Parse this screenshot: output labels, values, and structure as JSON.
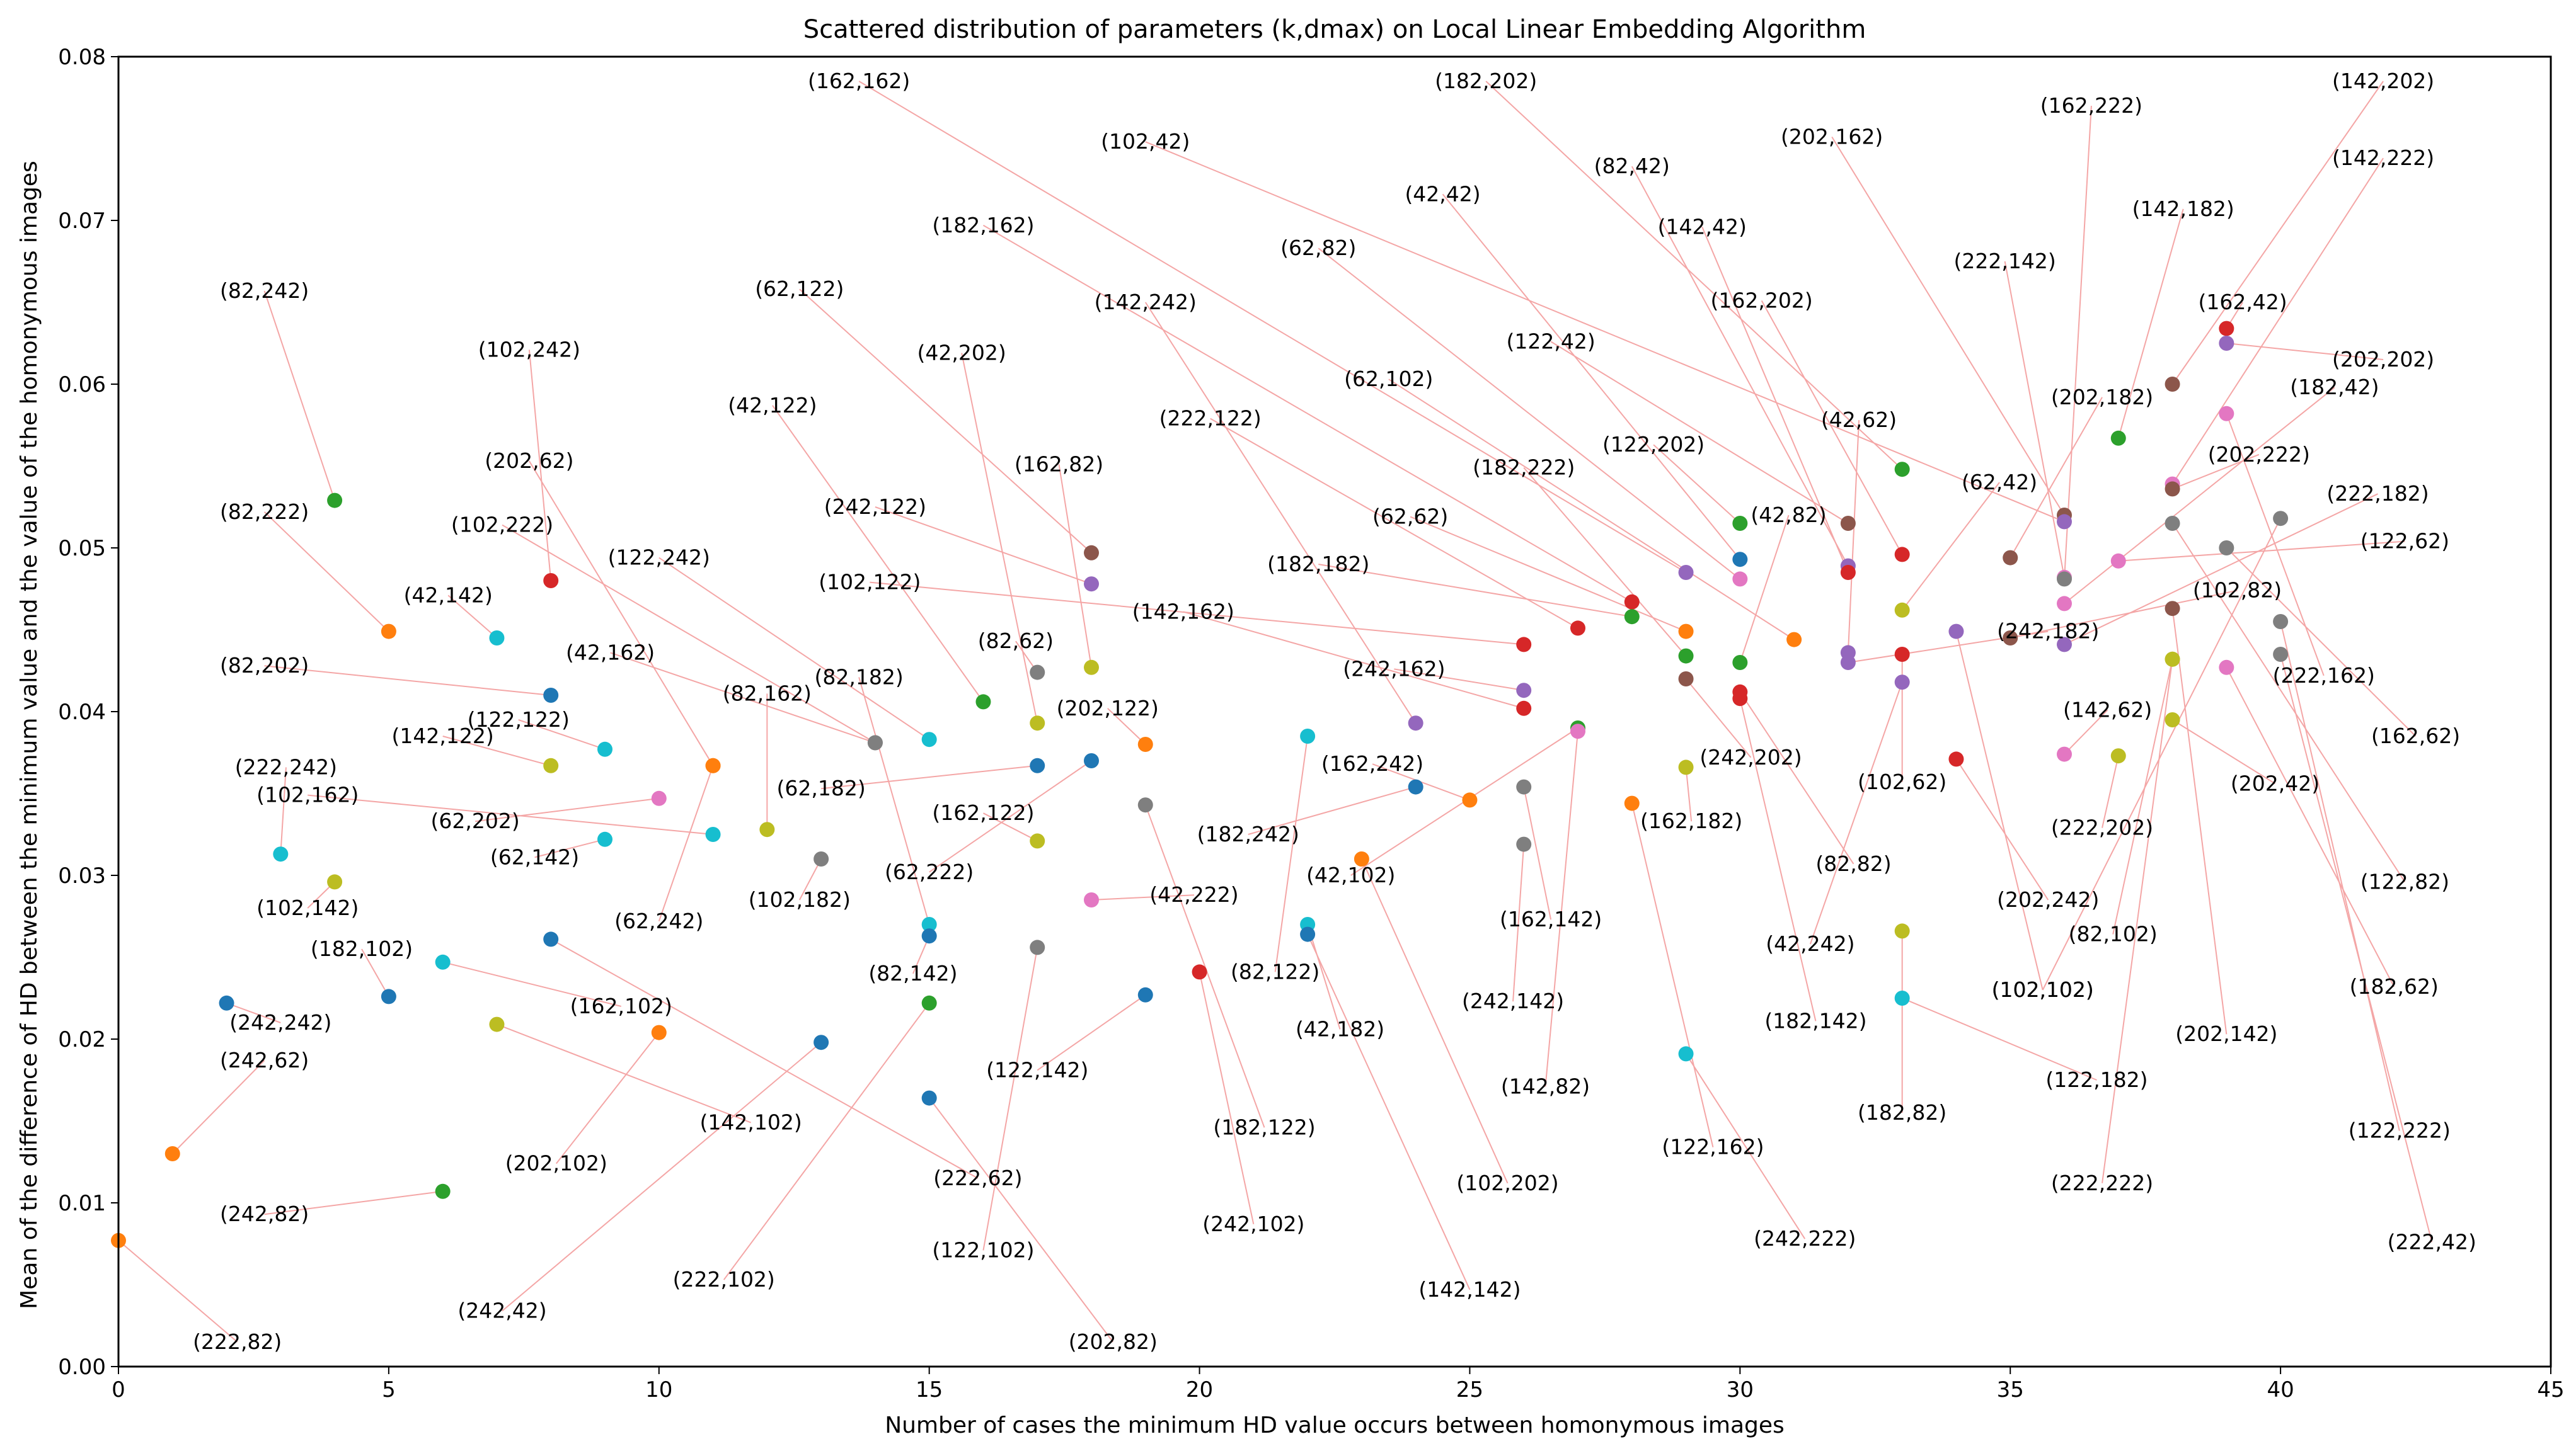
{
  "chart_data": {
    "type": "scatter",
    "title": "Scattered distribution of parameters (k,dmax) on Local Linear Embedding Algorithm",
    "xlabel": "Number of cases the minimum HD value occurs between homonymous images",
    "ylabel": "Mean of the difference of HD between the minimum value and the value of the homonymous images",
    "xlim": [
      0,
      45
    ],
    "ylim": [
      0,
      0.08
    ],
    "xticks": [
      0,
      5,
      10,
      15,
      20,
      25,
      30,
      35,
      40,
      45
    ],
    "xtick_labels": [
      "0",
      "5",
      "10",
      "15",
      "20",
      "25",
      "30",
      "35",
      "40",
      "45"
    ],
    "yticks": [
      0,
      0.01,
      0.02,
      0.03,
      0.04,
      0.05,
      0.06,
      0.07,
      0.08
    ],
    "ytick_labels": [
      "0.00",
      "0.01",
      "0.02",
      "0.03",
      "0.04",
      "0.05",
      "0.06",
      "0.07",
      "0.08"
    ],
    "grid": false,
    "leader_line_color": "#f4a6a6",
    "points": [
      {
        "x": 0,
        "y": 0.0077,
        "label": "(222,82)",
        "lx": 2.2,
        "ly": 0.0015,
        "color": "#ff7f0e"
      },
      {
        "x": 1,
        "y": 0.013,
        "label": "(242,62)",
        "lx": 2.7,
        "ly": 0.0187,
        "color": "#ff7f0e"
      },
      {
        "x": 2,
        "y": 0.0222,
        "label": "(242,242)",
        "lx": 3.0,
        "ly": 0.021,
        "color": "#1f77b4"
      },
      {
        "x": 3,
        "y": 0.0313,
        "label": "(222,242)",
        "lx": 3.1,
        "ly": 0.0366,
        "color": "#17becf"
      },
      {
        "x": 4,
        "y": 0.0529,
        "label": "(82,242)",
        "lx": 2.7,
        "ly": 0.0657,
        "color": "#2ca02c"
      },
      {
        "x": 4,
        "y": 0.0296,
        "label": "(102,142)",
        "lx": 3.5,
        "ly": 0.028,
        "color": "#bcbd22"
      },
      {
        "x": 5,
        "y": 0.0449,
        "label": "(82,222)",
        "lx": 2.7,
        "ly": 0.0522,
        "color": "#ff7f0e"
      },
      {
        "x": 5,
        "y": 0.0226,
        "label": "(182,102)",
        "lx": 4.5,
        "ly": 0.0255,
        "color": "#1f77b4"
      },
      {
        "x": 6,
        "y": 0.0107,
        "label": "(242,82)",
        "lx": 2.7,
        "ly": 0.0093,
        "color": "#2ca02c"
      },
      {
        "x": 6,
        "y": 0.0247,
        "label": "(162,102)",
        "lx": 9.3,
        "ly": 0.022,
        "color": "#17becf"
      },
      {
        "x": 7,
        "y": 0.0445,
        "label": "(42,142)",
        "lx": 6.1,
        "ly": 0.0471,
        "color": "#17becf"
      },
      {
        "x": 7,
        "y": 0.0209,
        "label": "(142,102)",
        "lx": 11.7,
        "ly": 0.0149,
        "color": "#bcbd22"
      },
      {
        "x": 8,
        "y": 0.048,
        "label": "(102,242)",
        "lx": 7.6,
        "ly": 0.0621,
        "color": "#d62728"
      },
      {
        "x": 8,
        "y": 0.041,
        "label": "(82,202)",
        "lx": 2.7,
        "ly": 0.0428,
        "color": "#1f77b4"
      },
      {
        "x": 8,
        "y": 0.0367,
        "label": "(142,122)",
        "lx": 6.0,
        "ly": 0.0385,
        "color": "#bcbd22"
      },
      {
        "x": 8,
        "y": 0.0261,
        "label": "(222,62)",
        "lx": 15.9,
        "ly": 0.0115,
        "color": "#1f77b4"
      },
      {
        "x": 9,
        "y": 0.0377,
        "label": "(122,122)",
        "lx": 7.4,
        "ly": 0.0395,
        "color": "#17becf"
      },
      {
        "x": 9,
        "y": 0.0322,
        "label": "(62,142)",
        "lx": 7.7,
        "ly": 0.0311,
        "color": "#17becf"
      },
      {
        "x": 10,
        "y": 0.0347,
        "label": "(62,202)",
        "lx": 6.6,
        "ly": 0.0333,
        "color": "#e377c2"
      },
      {
        "x": 10,
        "y": 0.0204,
        "label": "(202,102)",
        "lx": 8.1,
        "ly": 0.0124,
        "color": "#ff7f0e"
      },
      {
        "x": 11,
        "y": 0.0367,
        "label": "(202,62)",
        "lx": 7.6,
        "ly": 0.0553,
        "color": "#ff7f0e"
      },
      {
        "x": 11,
        "y": 0.0325,
        "label": "(102,162)",
        "lx": 3.5,
        "ly": 0.0349,
        "color": "#17becf"
      },
      {
        "x": 11,
        "y": 0.0367,
        "label": "(62,242)",
        "lx": 10.0,
        "ly": 0.0272,
        "color": "#ff7f0e"
      },
      {
        "x": 12,
        "y": 0.0328,
        "label": "(82,162)",
        "lx": 12.0,
        "ly": 0.0411,
        "color": "#bcbd22"
      },
      {
        "x": 13,
        "y": 0.031,
        "label": "(102,182)",
        "lx": 12.6,
        "ly": 0.0285,
        "color": "#7f7f7f"
      },
      {
        "x": 13,
        "y": 0.0198,
        "label": "(242,42)",
        "lx": 7.1,
        "ly": 0.0034,
        "color": "#1f77b4"
      },
      {
        "x": 14,
        "y": 0.0381,
        "label": "(42,162)",
        "lx": 9.1,
        "ly": 0.0436,
        "color": "#7f7f7f"
      },
      {
        "x": 14,
        "y": 0.0381,
        "label": "(102,222)",
        "lx": 7.1,
        "ly": 0.0514,
        "color": "#7f7f7f"
      },
      {
        "x": 15,
        "y": 0.0383,
        "label": "(122,242)",
        "lx": 10.0,
        "ly": 0.0494,
        "color": "#17becf"
      },
      {
        "x": 15,
        "y": 0.027,
        "label": "(82,182)",
        "lx": 13.7,
        "ly": 0.0421,
        "color": "#17becf"
      },
      {
        "x": 15,
        "y": 0.0263,
        "label": "(82,142)",
        "lx": 14.7,
        "ly": 0.024,
        "color": "#1f77b4"
      },
      {
        "x": 15,
        "y": 0.0222,
        "label": "(222,102)",
        "lx": 11.2,
        "ly": 0.0053,
        "color": "#2ca02c"
      },
      {
        "x": 15,
        "y": 0.0164,
        "label": "(202,82)",
        "lx": 18.4,
        "ly": 0.0015,
        "color": "#1f77b4"
      },
      {
        "x": 16,
        "y": 0.0406,
        "label": "(42,122)",
        "lx": 12.1,
        "ly": 0.0587,
        "color": "#2ca02c"
      },
      {
        "x": 17,
        "y": 0.0424,
        "label": "(82,62)",
        "lx": 16.6,
        "ly": 0.0443,
        "color": "#7f7f7f"
      },
      {
        "x": 17,
        "y": 0.0393,
        "label": "(42,202)",
        "lx": 15.6,
        "ly": 0.0619,
        "color": "#bcbd22"
      },
      {
        "x": 17,
        "y": 0.0367,
        "label": "(62,182)",
        "lx": 13.0,
        "ly": 0.0353,
        "color": "#1f77b4"
      },
      {
        "x": 17,
        "y": 0.0321,
        "label": "(162,122)",
        "lx": 16.0,
        "ly": 0.0338,
        "color": "#bcbd22"
      },
      {
        "x": 17,
        "y": 0.0256,
        "label": "(122,102)",
        "lx": 16.0,
        "ly": 0.0071,
        "color": "#7f7f7f"
      },
      {
        "x": 18,
        "y": 0.0497,
        "label": "(62,122)",
        "lx": 12.6,
        "ly": 0.0658,
        "color": "#8c564b"
      },
      {
        "x": 18,
        "y": 0.0478,
        "label": "(242,122)",
        "lx": 14.0,
        "ly": 0.0525,
        "color": "#9467bd"
      },
      {
        "x": 18,
        "y": 0.0427,
        "label": "(162,82)",
        "lx": 17.4,
        "ly": 0.0551,
        "color": "#bcbd22"
      },
      {
        "x": 18,
        "y": 0.037,
        "label": "(62,222)",
        "lx": 15.0,
        "ly": 0.0302,
        "color": "#1f77b4"
      },
      {
        "x": 18,
        "y": 0.0285,
        "label": "(42,222)",
        "lx": 19.9,
        "ly": 0.0288,
        "color": "#e377c2"
      },
      {
        "x": 19,
        "y": 0.038,
        "label": "(202,122)",
        "lx": 18.3,
        "ly": 0.0402,
        "color": "#ff7f0e"
      },
      {
        "x": 19,
        "y": 0.0343,
        "label": "(182,122)",
        "lx": 21.2,
        "ly": 0.0146,
        "color": "#7f7f7f"
      },
      {
        "x": 19,
        "y": 0.0227,
        "label": "(122,142)",
        "lx": 17.0,
        "ly": 0.0181,
        "color": "#1f77b4"
      },
      {
        "x": 20,
        "y": 0.0241,
        "label": "(242,102)",
        "lx": 21.0,
        "ly": 0.0087,
        "color": "#d62728"
      },
      {
        "x": 22,
        "y": 0.0385,
        "label": "(82,122)",
        "lx": 21.4,
        "ly": 0.0241,
        "color": "#17becf"
      },
      {
        "x": 22,
        "y": 0.027,
        "label": "(42,182)",
        "lx": 22.6,
        "ly": 0.0206,
        "color": "#17becf"
      },
      {
        "x": 22,
        "y": 0.0264,
        "label": "(142,142)",
        "lx": 25.0,
        "ly": 0.0047,
        "color": "#1f77b4"
      },
      {
        "x": 23,
        "y": 0.031,
        "label": "(102,202)",
        "lx": 25.7,
        "ly": 0.0112,
        "color": "#ff7f0e"
      },
      {
        "x": 24,
        "y": 0.0393,
        "label": "(142,242)",
        "lx": 19.0,
        "ly": 0.065,
        "color": "#9467bd"
      },
      {
        "x": 24,
        "y": 0.0354,
        "label": "(182,242)",
        "lx": 20.9,
        "ly": 0.0325,
        "color": "#1f77b4"
      },
      {
        "x": 25,
        "y": 0.0346,
        "label": "(162,242)",
        "lx": 23.2,
        "ly": 0.0368,
        "color": "#ff7f0e"
      },
      {
        "x": 26,
        "y": 0.0441,
        "label": "(102,122)",
        "lx": 13.9,
        "ly": 0.0479,
        "color": "#d62728"
      },
      {
        "x": 26,
        "y": 0.0413,
        "label": "(242,162)",
        "lx": 23.6,
        "ly": 0.0426,
        "color": "#9467bd"
      },
      {
        "x": 26,
        "y": 0.0402,
        "label": "(142,162)",
        "lx": 19.7,
        "ly": 0.0461,
        "color": "#d62728"
      },
      {
        "x": 26,
        "y": 0.0354,
        "label": "(162,142)",
        "lx": 26.5,
        "ly": 0.0273,
        "color": "#7f7f7f"
      },
      {
        "x": 26,
        "y": 0.0319,
        "label": "(242,142)",
        "lx": 25.8,
        "ly": 0.0223,
        "color": "#7f7f7f"
      },
      {
        "x": 27,
        "y": 0.0451,
        "label": "(222,122)",
        "lx": 20.2,
        "ly": 0.0579,
        "color": "#d62728"
      },
      {
        "x": 27,
        "y": 0.039,
        "label": "(42,102)",
        "lx": 22.8,
        "ly": 0.03,
        "color": "#2ca02c"
      },
      {
        "x": 27,
        "y": 0.0388,
        "label": "(142,82)",
        "lx": 26.4,
        "ly": 0.0171,
        "color": "#e377c2"
      },
      {
        "x": 28,
        "y": 0.0467,
        "label": "(182,162)",
        "lx": 16.0,
        "ly": 0.0697,
        "color": "#d62728"
      },
      {
        "x": 28,
        "y": 0.0458,
        "label": "(182,182)",
        "lx": 22.2,
        "ly": 0.049,
        "color": "#2ca02c"
      },
      {
        "x": 28,
        "y": 0.0344,
        "label": "(122,162)",
        "lx": 29.5,
        "ly": 0.0134,
        "color": "#ff7f0e"
      },
      {
        "x": 29,
        "y": 0.0485,
        "label": "(162,162)",
        "lx": 13.7,
        "ly": 0.0785,
        "color": "#9467bd"
      },
      {
        "x": 29,
        "y": 0.0449,
        "label": "(62,62)",
        "lx": 23.9,
        "ly": 0.0519,
        "color": "#ff7f0e"
      },
      {
        "x": 29,
        "y": 0.0434,
        "label": "(182,222)",
        "lx": 26.0,
        "ly": 0.0549,
        "color": "#2ca02c"
      },
      {
        "x": 29,
        "y": 0.042,
        "label": "(242,202)",
        "lx": 30.2,
        "ly": 0.0372,
        "color": "#8c564b"
      },
      {
        "x": 29,
        "y": 0.0366,
        "label": "(162,182)",
        "lx": 29.1,
        "ly": 0.0333,
        "color": "#bcbd22"
      },
      {
        "x": 29,
        "y": 0.0191,
        "label": "(242,222)",
        "lx": 31.2,
        "ly": 0.0078,
        "color": "#17becf"
      },
      {
        "x": 30,
        "y": 0.0515,
        "label": "(122,202)",
        "lx": 28.4,
        "ly": 0.0563,
        "color": "#2ca02c"
      },
      {
        "x": 30,
        "y": 0.0493,
        "label": "(42,42)",
        "lx": 24.5,
        "ly": 0.0716,
        "color": "#1f77b4"
      },
      {
        "x": 30,
        "y": 0.0481,
        "label": "(62,82)",
        "lx": 22.2,
        "ly": 0.0683,
        "color": "#e377c2"
      },
      {
        "x": 30,
        "y": 0.043,
        "label": "(42,82)",
        "lx": 30.9,
        "ly": 0.052,
        "color": "#2ca02c"
      },
      {
        "x": 30,
        "y": 0.0412,
        "label": "(82,82)",
        "lx": 32.1,
        "ly": 0.0307,
        "color": "#d62728"
      },
      {
        "x": 30,
        "y": 0.0408,
        "label": "(182,142)",
        "lx": 31.4,
        "ly": 0.0211,
        "color": "#d62728"
      },
      {
        "x": 31,
        "y": 0.0444,
        "label": "(62,102)",
        "lx": 23.5,
        "ly": 0.0603,
        "color": "#ff7f0e"
      },
      {
        "x": 32,
        "y": 0.0515,
        "label": "(122,42)",
        "lx": 26.5,
        "ly": 0.0626,
        "color": "#8c564b"
      },
      {
        "x": 32,
        "y": 0.0489,
        "label": "(82,42)",
        "lx": 28.0,
        "ly": 0.0733,
        "color": "#9467bd"
      },
      {
        "x": 32,
        "y": 0.0485,
        "label": "(142,42)",
        "lx": 29.3,
        "ly": 0.0696,
        "color": "#d62728"
      },
      {
        "x": 32,
        "y": 0.0436,
        "label": "(42,62)",
        "lx": 32.2,
        "ly": 0.0578,
        "color": "#9467bd"
      },
      {
        "x": 32,
        "y": 0.043,
        "label": "(242,182)",
        "lx": 35.7,
        "ly": 0.0449,
        "color": "#9467bd"
      },
      {
        "x": 33,
        "y": 0.0548,
        "label": "(182,202)",
        "lx": 25.3,
        "ly": 0.0785,
        "color": "#2ca02c"
      },
      {
        "x": 33,
        "y": 0.0496,
        "label": "(162,202)",
        "lx": 30.4,
        "ly": 0.0651,
        "color": "#d62728"
      },
      {
        "x": 33,
        "y": 0.0462,
        "label": "(62,42)",
        "lx": 34.8,
        "ly": 0.054,
        "color": "#bcbd22"
      },
      {
        "x": 33,
        "y": 0.0435,
        "label": "(102,62)",
        "lx": 33.0,
        "ly": 0.0357,
        "color": "#d62728"
      },
      {
        "x": 33,
        "y": 0.0418,
        "label": "(42,242)",
        "lx": 31.3,
        "ly": 0.0258,
        "color": "#9467bd"
      },
      {
        "x": 33,
        "y": 0.0266,
        "label": "(182,82)",
        "lx": 33.0,
        "ly": 0.0155,
        "color": "#bcbd22"
      },
      {
        "x": 33,
        "y": 0.0225,
        "label": "(122,182)",
        "lx": 36.6,
        "ly": 0.0175,
        "color": "#17becf"
      },
      {
        "x": 34,
        "y": 0.0449,
        "label": "(102,102)",
        "lx": 35.6,
        "ly": 0.023,
        "color": "#9467bd"
      },
      {
        "x": 34,
        "y": 0.0371,
        "label": "(202,242)",
        "lx": 35.7,
        "ly": 0.0285,
        "color": "#d62728"
      },
      {
        "x": 35,
        "y": 0.0494,
        "label": "(202,182)",
        "lx": 36.7,
        "ly": 0.0592,
        "color": "#8c564b"
      },
      {
        "x": 35,
        "y": 0.0445,
        "label": "(102,82)",
        "lx": 39.2,
        "ly": 0.0474,
        "color": "#8c564b"
      },
      {
        "x": 36,
        "y": 0.052,
        "label": "(202,162)",
        "lx": 31.7,
        "ly": 0.0751,
        "color": "#8c564b"
      },
      {
        "x": 36,
        "y": 0.0516,
        "label": "(102,42)",
        "lx": 19.0,
        "ly": 0.0748,
        "color": "#9467bd"
      },
      {
        "x": 36,
        "y": 0.0482,
        "label": "(222,142)",
        "lx": 34.9,
        "ly": 0.0675,
        "color": "#e377c2"
      },
      {
        "x": 36,
        "y": 0.0481,
        "label": "(162,222)",
        "lx": 36.5,
        "ly": 0.077,
        "color": "#7f7f7f"
      },
      {
        "x": 36,
        "y": 0.0466,
        "label": "(182,42)",
        "lx": 41.0,
        "ly": 0.0598,
        "color": "#e377c2"
      },
      {
        "x": 36,
        "y": 0.0441,
        "label": "(222,182)",
        "lx": 41.8,
        "ly": 0.0533,
        "color": "#9467bd"
      },
      {
        "x": 36,
        "y": 0.0374,
        "label": "(142,62)",
        "lx": 36.8,
        "ly": 0.0401,
        "color": "#e377c2"
      },
      {
        "x": 37,
        "y": 0.0567,
        "label": "(142,182)",
        "lx": 38.2,
        "ly": 0.0707,
        "color": "#2ca02c"
      },
      {
        "x": 37,
        "y": 0.0492,
        "label": "(122,62)",
        "lx": 42.3,
        "ly": 0.0504,
        "color": "#e377c2"
      },
      {
        "x": 37,
        "y": 0.0373,
        "label": "(222,202)",
        "lx": 36.7,
        "ly": 0.0329,
        "color": "#bcbd22"
      },
      {
        "x": 38,
        "y": 0.06,
        "label": "(142,202)",
        "lx": 41.9,
        "ly": 0.0785,
        "color": "#8c564b"
      },
      {
        "x": 38,
        "y": 0.0539,
        "label": "(142,222)",
        "lx": 41.9,
        "ly": 0.0738,
        "color": "#e377c2"
      },
      {
        "x": 38,
        "y": 0.0536,
        "label": "(202,222)",
        "lx": 39.6,
        "ly": 0.0557,
        "color": "#8c564b"
      },
      {
        "x": 38,
        "y": 0.0515,
        "label": "(122,82)",
        "lx": 42.3,
        "ly": 0.0296,
        "color": "#7f7f7f"
      },
      {
        "x": 38,
        "y": 0.0463,
        "label": "(202,142)",
        "lx": 39.0,
        "ly": 0.0203,
        "color": "#8c564b"
      },
      {
        "x": 38,
        "y": 0.0432,
        "label": "(82,102)",
        "lx": 36.9,
        "ly": 0.0264,
        "color": "#bcbd22"
      },
      {
        "x": 38,
        "y": 0.0395,
        "label": "(202,42)",
        "lx": 39.9,
        "ly": 0.0356,
        "color": "#bcbd22"
      },
      {
        "x": 39,
        "y": 0.0634,
        "label": "(162,42)",
        "lx": 39.3,
        "ly": 0.065,
        "color": "#d62728"
      },
      {
        "x": 39,
        "y": 0.0625,
        "label": "(202,202)",
        "lx": 41.9,
        "ly": 0.0615,
        "color": "#9467bd"
      },
      {
        "x": 39,
        "y": 0.0582,
        "label": "(222,162)",
        "lx": 40.8,
        "ly": 0.0422,
        "color": "#e377c2"
      },
      {
        "x": 39,
        "y": 0.05,
        "label": "(162,62)",
        "lx": 42.5,
        "ly": 0.0385,
        "color": "#7f7f7f"
      },
      {
        "x": 39,
        "y": 0.0427,
        "label": "(182,62)",
        "lx": 42.1,
        "ly": 0.0232,
        "color": "#e377c2"
      },
      {
        "x": 40,
        "y": 0.0518,
        "label": "(102,102)",
        "lx": 35.6,
        "ly": 0.023,
        "color": "#7f7f7f"
      },
      {
        "x": 40,
        "y": 0.0455,
        "label": "(122,222)",
        "lx": 42.2,
        "ly": 0.0144,
        "color": "#7f7f7f"
      },
      {
        "x": 40,
        "y": 0.0435,
        "label": "(222,42)",
        "lx": 42.8,
        "ly": 0.0076,
        "color": "#7f7f7f"
      },
      {
        "x": 38,
        "y": 0.0432,
        "label": "(222,222)",
        "lx": 36.7,
        "ly": 0.0112,
        "color": "#bcbd22"
      }
    ]
  }
}
